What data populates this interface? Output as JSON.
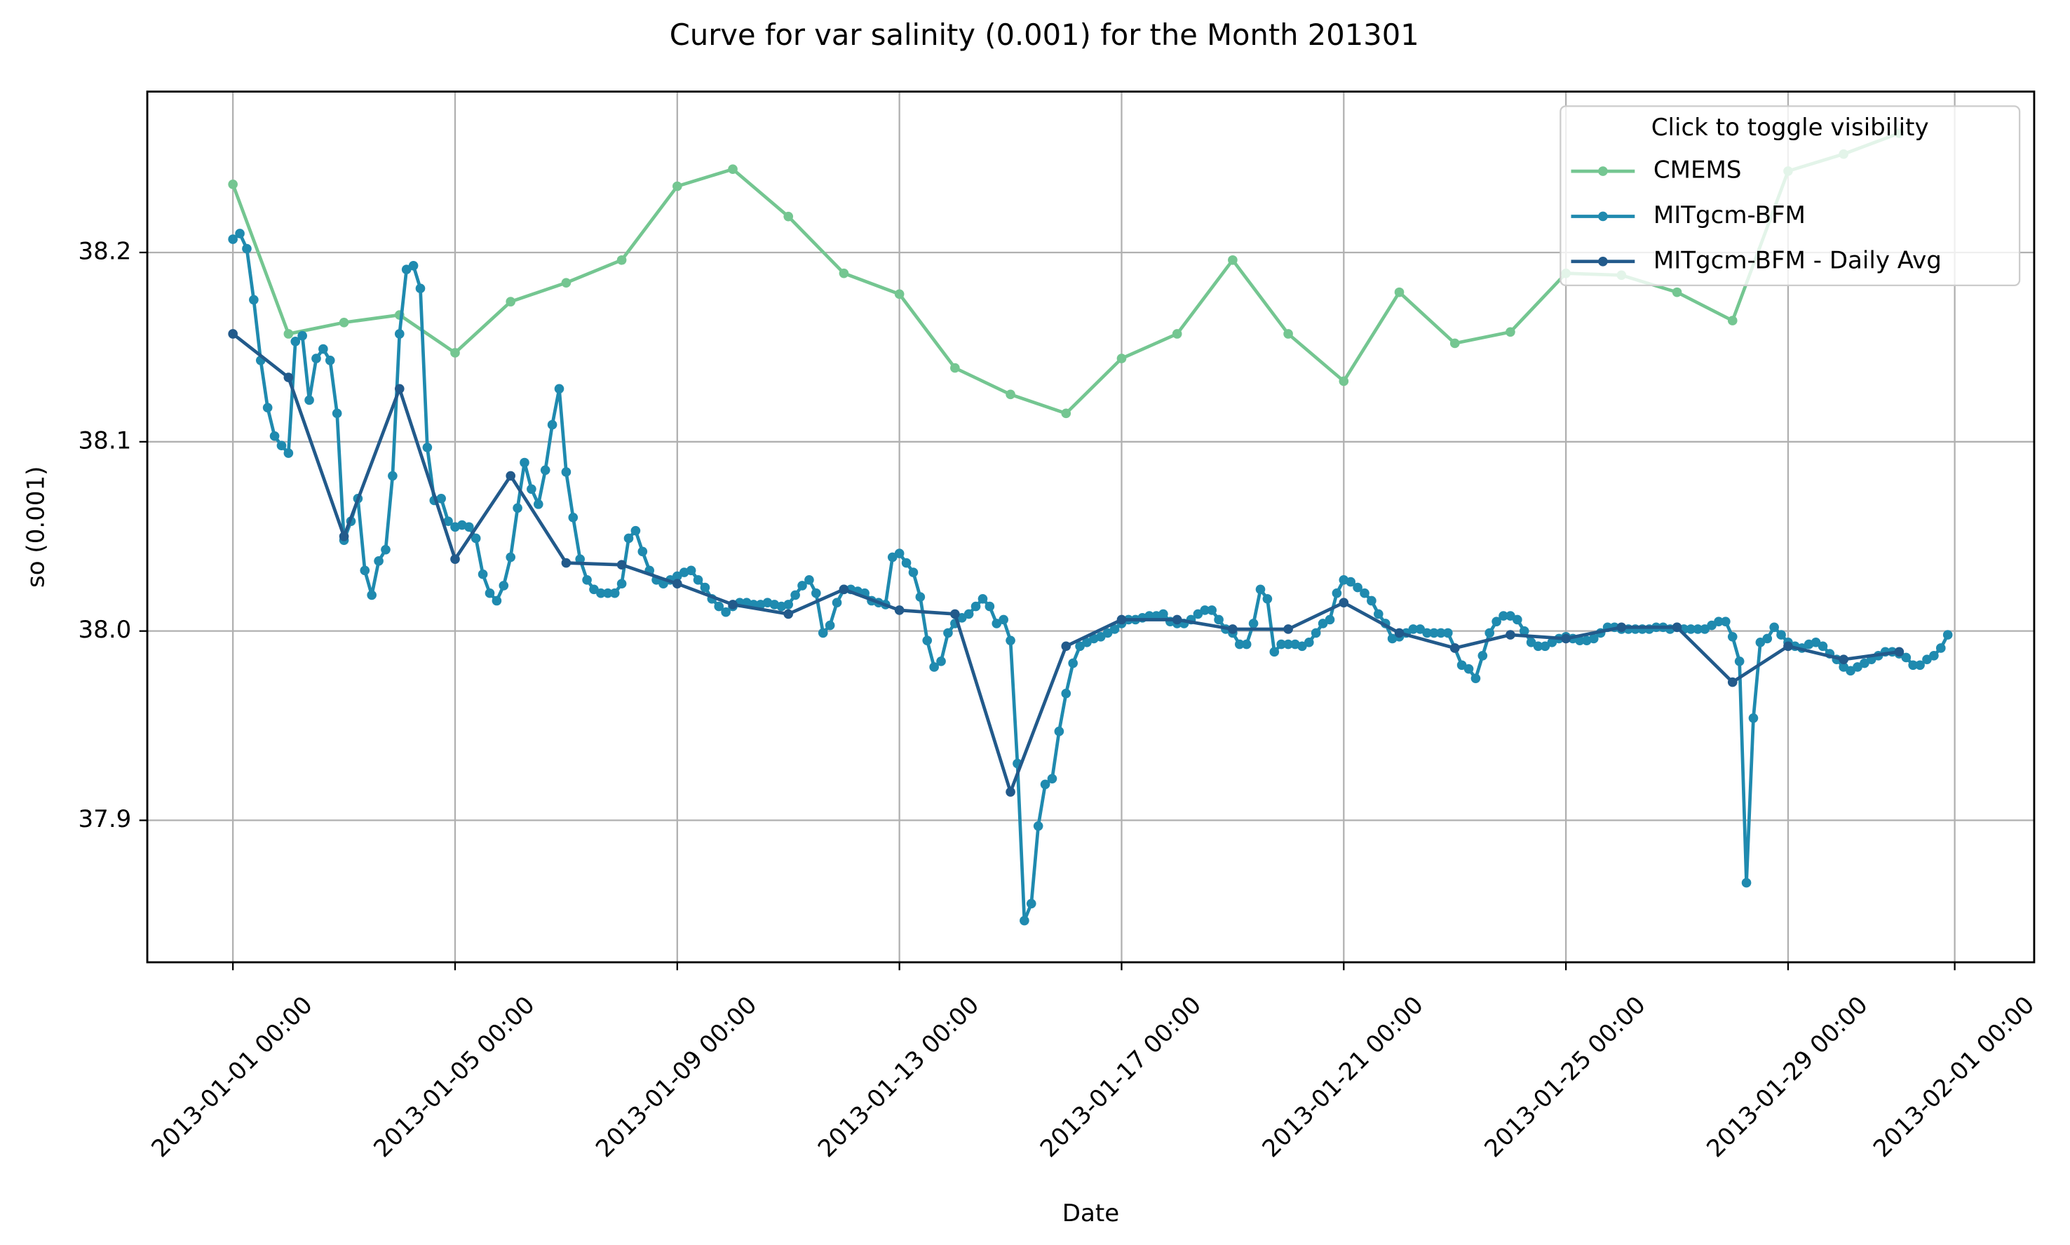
{
  "chart_data": {
    "type": "line",
    "title": "Curve for var salinity (0.001) for the Month 201301",
    "x_label": "Date",
    "y_label": "so (0.001)",
    "legend_title": "Click to toggle visibility",
    "legend_loc": "upper right",
    "grid": true,
    "xlim": [
      "2012-12-30 11:00",
      "2013-02-02 10:20"
    ],
    "xticks": [
      "2013-01-01 00:00",
      "2013-01-05 00:00",
      "2013-01-09 00:00",
      "2013-01-13 00:00",
      "2013-01-17 00:00",
      "2013-01-21 00:00",
      "2013-01-25 00:00",
      "2013-01-29 00:00",
      "2013-02-01 00:00"
    ],
    "ylim": [
      37.825,
      38.285
    ],
    "yticks": [
      37.9,
      {
        "value": 38,
        "label": "38.0"
      },
      38.1,
      38.2
    ],
    "series": [
      {
        "name": "CMEMS",
        "color": "#74c691",
        "x": [
          "2013-01-01 00:00",
          "2013-01-02 00:00",
          "2013-01-03 00:00",
          "2013-01-04 00:00",
          "2013-01-05 00:00",
          "2013-01-06 00:00",
          "2013-01-07 00:00",
          "2013-01-08 00:00",
          "2013-01-09 00:00",
          "2013-01-10 00:00",
          "2013-01-11 00:00",
          "2013-01-12 00:00",
          "2013-01-13 00:00",
          "2013-01-14 00:00",
          "2013-01-15 00:00",
          "2013-01-16 00:00",
          "2013-01-17 00:00",
          "2013-01-18 00:00",
          "2013-01-19 00:00",
          "2013-01-20 00:00",
          "2013-01-21 00:00",
          "2013-01-22 00:00",
          "2013-01-23 00:00",
          "2013-01-24 00:00",
          "2013-01-25 00:00",
          "2013-01-26 00:00",
          "2013-01-27 00:00",
          "2013-01-28 00:00",
          "2013-01-29 00:00",
          "2013-01-30 00:00",
          "2013-01-31 00:00"
        ],
        "values": [
          38.236,
          38.157,
          38.163,
          38.167,
          38.147,
          38.174,
          38.184,
          38.196,
          38.235,
          38.244,
          38.219,
          38.189,
          38.178,
          38.139,
          38.125,
          38.115,
          38.144,
          38.157,
          38.196,
          38.157,
          38.132,
          38.179,
          38.152,
          38.158,
          38.189,
          38.188,
          38.179,
          38.164,
          38.243,
          38.252,
          38.263
        ]
      },
      {
        "name": "MITgcm-BFM",
        "color": "#1f8aaf",
        "x": [
          "2013-01-01 00:00",
          "2013-01-01 03:00",
          "2013-01-01 06:00",
          "2013-01-01 09:00",
          "2013-01-01 12:00",
          "2013-01-01 15:00",
          "2013-01-01 18:00",
          "2013-01-01 21:00",
          "2013-01-02 00:00",
          "2013-01-02 03:00",
          "2013-01-02 06:00",
          "2013-01-02 09:00",
          "2013-01-02 12:00",
          "2013-01-02 15:00",
          "2013-01-02 18:00",
          "2013-01-02 21:00",
          "2013-01-03 00:00",
          "2013-01-03 03:00",
          "2013-01-03 06:00",
          "2013-01-03 09:00",
          "2013-01-03 12:00",
          "2013-01-03 15:00",
          "2013-01-03 18:00",
          "2013-01-03 21:00",
          "2013-01-04 00:00",
          "2013-01-04 03:00",
          "2013-01-04 06:00",
          "2013-01-04 09:00",
          "2013-01-04 12:00",
          "2013-01-04 15:00",
          "2013-01-04 18:00",
          "2013-01-04 21:00",
          "2013-01-05 00:00",
          "2013-01-05 03:00",
          "2013-01-05 06:00",
          "2013-01-05 09:00",
          "2013-01-05 12:00",
          "2013-01-05 15:00",
          "2013-01-05 18:00",
          "2013-01-05 21:00",
          "2013-01-06 00:00",
          "2013-01-06 03:00",
          "2013-01-06 06:00",
          "2013-01-06 09:00",
          "2013-01-06 12:00",
          "2013-01-06 15:00",
          "2013-01-06 18:00",
          "2013-01-06 21:00",
          "2013-01-07 00:00",
          "2013-01-07 03:00",
          "2013-01-07 06:00",
          "2013-01-07 09:00",
          "2013-01-07 12:00",
          "2013-01-07 15:00",
          "2013-01-07 18:00",
          "2013-01-07 21:00",
          "2013-01-08 00:00",
          "2013-01-08 03:00",
          "2013-01-08 06:00",
          "2013-01-08 09:00",
          "2013-01-08 12:00",
          "2013-01-08 15:00",
          "2013-01-08 18:00",
          "2013-01-08 21:00",
          "2013-01-09 00:00",
          "2013-01-09 03:00",
          "2013-01-09 06:00",
          "2013-01-09 09:00",
          "2013-01-09 12:00",
          "2013-01-09 15:00",
          "2013-01-09 18:00",
          "2013-01-09 21:00",
          "2013-01-10 00:00",
          "2013-01-10 03:00",
          "2013-01-10 06:00",
          "2013-01-10 09:00",
          "2013-01-10 12:00",
          "2013-01-10 15:00",
          "2013-01-10 18:00",
          "2013-01-10 21:00",
          "2013-01-11 00:00",
          "2013-01-11 03:00",
          "2013-01-11 06:00",
          "2013-01-11 09:00",
          "2013-01-11 12:00",
          "2013-01-11 15:00",
          "2013-01-11 18:00",
          "2013-01-11 21:00",
          "2013-01-12 00:00",
          "2013-01-12 03:00",
          "2013-01-12 06:00",
          "2013-01-12 09:00",
          "2013-01-12 12:00",
          "2013-01-12 15:00",
          "2013-01-12 18:00",
          "2013-01-12 21:00",
          "2013-01-13 00:00",
          "2013-01-13 03:00",
          "2013-01-13 06:00",
          "2013-01-13 09:00",
          "2013-01-13 12:00",
          "2013-01-13 15:00",
          "2013-01-13 18:00",
          "2013-01-13 21:00",
          "2013-01-14 00:00",
          "2013-01-14 03:00",
          "2013-01-14 06:00",
          "2013-01-14 09:00",
          "2013-01-14 12:00",
          "2013-01-14 15:00",
          "2013-01-14 18:00",
          "2013-01-14 21:00",
          "2013-01-15 00:00",
          "2013-01-15 03:00",
          "2013-01-15 06:00",
          "2013-01-15 09:00",
          "2013-01-15 12:00",
          "2013-01-15 15:00",
          "2013-01-15 18:00",
          "2013-01-15 21:00",
          "2013-01-16 00:00",
          "2013-01-16 03:00",
          "2013-01-16 06:00",
          "2013-01-16 09:00",
          "2013-01-16 12:00",
          "2013-01-16 15:00",
          "2013-01-16 18:00",
          "2013-01-16 21:00",
          "2013-01-17 00:00",
          "2013-01-17 03:00",
          "2013-01-17 06:00",
          "2013-01-17 09:00",
          "2013-01-17 12:00",
          "2013-01-17 15:00",
          "2013-01-17 18:00",
          "2013-01-17 21:00",
          "2013-01-18 00:00",
          "2013-01-18 03:00",
          "2013-01-18 06:00",
          "2013-01-18 09:00",
          "2013-01-18 12:00",
          "2013-01-18 15:00",
          "2013-01-18 18:00",
          "2013-01-18 21:00",
          "2013-01-19 00:00",
          "2013-01-19 03:00",
          "2013-01-19 06:00",
          "2013-01-19 09:00",
          "2013-01-19 12:00",
          "2013-01-19 15:00",
          "2013-01-19 18:00",
          "2013-01-19 21:00",
          "2013-01-20 00:00",
          "2013-01-20 03:00",
          "2013-01-20 06:00",
          "2013-01-20 09:00",
          "2013-01-20 12:00",
          "2013-01-20 15:00",
          "2013-01-20 18:00",
          "2013-01-20 21:00",
          "2013-01-21 00:00",
          "2013-01-21 03:00",
          "2013-01-21 06:00",
          "2013-01-21 09:00",
          "2013-01-21 12:00",
          "2013-01-21 15:00",
          "2013-01-21 18:00",
          "2013-01-21 21:00",
          "2013-01-22 00:00",
          "2013-01-22 03:00",
          "2013-01-22 06:00",
          "2013-01-22 09:00",
          "2013-01-22 12:00",
          "2013-01-22 15:00",
          "2013-01-22 18:00",
          "2013-01-22 21:00",
          "2013-01-23 00:00",
          "2013-01-23 03:00",
          "2013-01-23 06:00",
          "2013-01-23 09:00",
          "2013-01-23 12:00",
          "2013-01-23 15:00",
          "2013-01-23 18:00",
          "2013-01-23 21:00",
          "2013-01-24 00:00",
          "2013-01-24 03:00",
          "2013-01-24 06:00",
          "2013-01-24 09:00",
          "2013-01-24 12:00",
          "2013-01-24 15:00",
          "2013-01-24 18:00",
          "2013-01-24 21:00",
          "2013-01-25 00:00",
          "2013-01-25 03:00",
          "2013-01-25 06:00",
          "2013-01-25 09:00",
          "2013-01-25 12:00",
          "2013-01-25 15:00",
          "2013-01-25 18:00",
          "2013-01-25 21:00",
          "2013-01-26 00:00",
          "2013-01-26 03:00",
          "2013-01-26 06:00",
          "2013-01-26 09:00",
          "2013-01-26 12:00",
          "2013-01-26 15:00",
          "2013-01-26 18:00",
          "2013-01-26 21:00",
          "2013-01-27 00:00",
          "2013-01-27 03:00",
          "2013-01-27 06:00",
          "2013-01-27 09:00",
          "2013-01-27 12:00",
          "2013-01-27 15:00",
          "2013-01-27 18:00",
          "2013-01-27 21:00",
          "2013-01-28 00:00",
          "2013-01-28 03:00",
          "2013-01-28 06:00",
          "2013-01-28 09:00",
          "2013-01-28 12:00",
          "2013-01-28 15:00",
          "2013-01-28 18:00",
          "2013-01-28 21:00",
          "2013-01-29 00:00",
          "2013-01-29 03:00",
          "2013-01-29 06:00",
          "2013-01-29 09:00",
          "2013-01-29 12:00",
          "2013-01-29 15:00",
          "2013-01-29 18:00",
          "2013-01-29 21:00",
          "2013-01-30 00:00",
          "2013-01-30 03:00",
          "2013-01-30 06:00",
          "2013-01-30 09:00",
          "2013-01-30 12:00",
          "2013-01-30 15:00",
          "2013-01-30 18:00",
          "2013-01-30 21:00",
          "2013-01-31 00:00",
          "2013-01-31 03:00",
          "2013-01-31 06:00",
          "2013-01-31 09:00",
          "2013-01-31 12:00",
          "2013-01-31 15:00",
          "2013-01-31 18:00",
          "2013-01-31 21:00"
        ],
        "values": [
          38.207,
          38.21,
          38.202,
          38.175,
          38.143,
          38.118,
          38.103,
          38.098,
          38.094,
          38.153,
          38.156,
          38.122,
          38.144,
          38.149,
          38.143,
          38.115,
          38.048,
          38.058,
          38.07,
          38.032,
          38.019,
          38.037,
          38.043,
          38.082,
          38.157,
          38.191,
          38.193,
          38.181,
          38.097,
          38.069,
          38.07,
          38.058,
          38.055,
          38.056,
          38.055,
          38.049,
          38.03,
          38.02,
          38.016,
          38.024,
          38.039,
          38.065,
          38.089,
          38.075,
          38.067,
          38.085,
          38.109,
          38.128,
          38.084,
          38.06,
          38.038,
          38.027,
          38.022,
          38.02,
          38.02,
          38.02,
          38.025,
          38.049,
          38.053,
          38.042,
          38.032,
          38.027,
          38.025,
          38.027,
          38.029,
          38.031,
          38.032,
          38.027,
          38.023,
          38.017,
          38.013,
          38.01,
          38.013,
          38.015,
          38.015,
          38.014,
          38.014,
          38.015,
          38.014,
          38.013,
          38.014,
          38.019,
          38.024,
          38.027,
          38.02,
          37.999,
          38.003,
          38.015,
          38.022,
          38.022,
          38.021,
          38.02,
          38.016,
          38.015,
          38.014,
          38.039,
          38.041,
          38.036,
          38.031,
          38.018,
          37.995,
          37.981,
          37.984,
          37.999,
          38.004,
          38.007,
          38.009,
          38.013,
          38.017,
          38.013,
          38.004,
          38.006,
          37.995,
          37.93,
          37.847,
          37.856,
          37.897,
          37.919,
          37.922,
          37.947,
          37.967,
          37.983,
          37.992,
          37.994,
          37.996,
          37.997,
          37.999,
          38.001,
          38.004,
          38.006,
          38.006,
          38.007,
          38.008,
          38.008,
          38.009,
          38.005,
          38.004,
          38.004,
          38.006,
          38.009,
          38.011,
          38.011,
          38.006,
          38.001,
          37.999,
          37.993,
          37.993,
          38.004,
          38.022,
          38.017,
          37.989,
          37.993,
          37.993,
          37.993,
          37.992,
          37.994,
          37.999,
          38.004,
          38.006,
          38.02,
          38.027,
          38.026,
          38.023,
          38.02,
          38.016,
          38.009,
          38.004,
          37.996,
          37.997,
          37.999,
          38.001,
          38.001,
          37.999,
          37.999,
          37.999,
          37.999,
          37.991,
          37.982,
          37.98,
          37.975,
          37.987,
          37.999,
          38.005,
          38.008,
          38.008,
          38.006,
          38.0,
          37.994,
          37.992,
          37.992,
          37.994,
          37.996,
          37.997,
          37.996,
          37.995,
          37.995,
          37.996,
          37.999,
          38.002,
          38.002,
          38.001,
          38.001,
          38.001,
          38.001,
          38.001,
          38.002,
          38.002,
          38.001,
          38.002,
          38.001,
          38.001,
          38.001,
          38.001,
          38.003,
          38.005,
          38.005,
          37.997,
          37.984,
          37.867,
          37.954,
          37.994,
          37.996,
          38.002,
          37.998,
          37.994,
          37.992,
          37.991,
          37.993,
          37.994,
          37.992,
          37.988,
          37.985,
          37.981,
          37.979,
          37.981,
          37.983,
          37.985,
          37.987,
          37.989,
          37.989,
          37.988,
          37.986,
          37.982,
          37.982,
          37.985,
          37.987,
          37.991,
          37.998
        ]
      },
      {
        "name": "MITgcm-BFM - Daily Avg",
        "color": "#225a8b",
        "x": [
          "2013-01-01 00:00",
          "2013-01-02 00:00",
          "2013-01-03 00:00",
          "2013-01-04 00:00",
          "2013-01-05 00:00",
          "2013-01-06 00:00",
          "2013-01-07 00:00",
          "2013-01-08 00:00",
          "2013-01-09 00:00",
          "2013-01-10 00:00",
          "2013-01-11 00:00",
          "2013-01-12 00:00",
          "2013-01-13 00:00",
          "2013-01-14 00:00",
          "2013-01-15 00:00",
          "2013-01-16 00:00",
          "2013-01-17 00:00",
          "2013-01-18 00:00",
          "2013-01-19 00:00",
          "2013-01-20 00:00",
          "2013-01-21 00:00",
          "2013-01-22 00:00",
          "2013-01-23 00:00",
          "2013-01-24 00:00",
          "2013-01-25 00:00",
          "2013-01-26 00:00",
          "2013-01-27 00:00",
          "2013-01-28 00:00",
          "2013-01-29 00:00",
          "2013-01-30 00:00",
          "2013-01-31 00:00"
        ],
        "values": [
          38.157,
          38.134,
          38.05,
          38.128,
          38.038,
          38.082,
          38.036,
          38.035,
          38.025,
          38.014,
          38.009,
          38.022,
          38.011,
          38.009,
          37.915,
          37.992,
          38.006,
          38.006,
          38.001,
          38.001,
          38.015,
          37.999,
          37.991,
          37.998,
          37.996,
          38.002,
          38.002,
          37.973,
          37.992,
          37.985,
          37.989
        ]
      }
    ]
  }
}
